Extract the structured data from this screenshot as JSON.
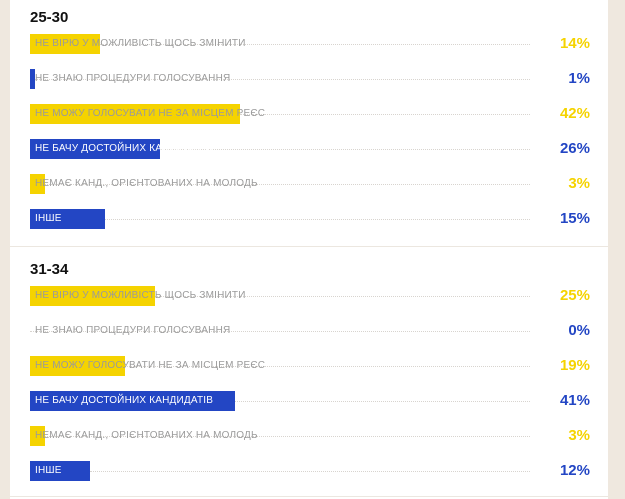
{
  "colors": {
    "yellow": "#f5d300",
    "blue": "#2346c4",
    "label_on_bar": "#ffffff",
    "label_off_bar": "#9a9a9a"
  },
  "chart_data": [
    {
      "type": "bar",
      "title": "25-30",
      "unit": "%",
      "categories": [
        "НЕ ВІРЮ У МОЖЛИВІСТЬ ЩОСЬ ЗМІНИТИ",
        "НЕ ЗНАЮ ПРОЦЕДУРИ ГОЛОСУВАННЯ",
        "НЕ МОЖУ ГОЛОСУВАТИ НЕ ЗА МІСЦЕМ РЕЄС",
        "НЕ БАЧУ ДОСТОЙНИХ КАНДИДАТІВ",
        "НЕМАЄ КАНД., ОРІЄНТОВАНИХ НА МОЛОДЬ",
        "ІНШЕ"
      ],
      "values": [
        14,
        1,
        42,
        26,
        3,
        15
      ],
      "value_labels": [
        "14%",
        "1%",
        "42%",
        "26%",
        "3%",
        "15%"
      ],
      "bar_colors": [
        "yellow",
        "blue",
        "yellow",
        "blue",
        "yellow",
        "blue"
      ]
    },
    {
      "type": "bar",
      "title": "31-34",
      "unit": "%",
      "categories": [
        "НЕ ВІРЮ У МОЖЛИВІСТЬ ЩОСЬ ЗМІНИТИ",
        "НЕ ЗНАЮ ПРОЦЕДУРИ ГОЛОСУВАННЯ",
        "НЕ МОЖУ ГОЛОСУВАТИ НЕ ЗА МІСЦЕМ РЕЄС",
        "НЕ БАЧУ ДОСТОЙНИХ КАНДИДАТІВ",
        "НЕМАЄ КАНД., ОРІЄНТОВАНИХ НА МОЛОДЬ",
        "ІНШЕ"
      ],
      "values": [
        25,
        0,
        19,
        41,
        3,
        12
      ],
      "value_labels": [
        "25%",
        "0%",
        "19%",
        "41%",
        "3%",
        "12%"
      ],
      "bar_colors": [
        "yellow",
        "blue",
        "yellow",
        "blue",
        "yellow",
        "blue"
      ]
    }
  ]
}
